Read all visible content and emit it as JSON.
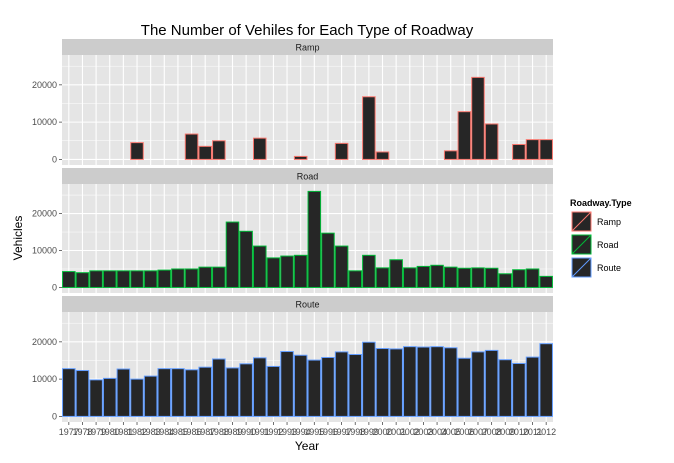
{
  "chart_data": {
    "type": "bar",
    "title": "The Number of Vehiles for Each Type of Roadway",
    "xlabel": "Year",
    "ylabel": "Vehicles",
    "grid": true,
    "legend": {
      "title": "Roadway.Type",
      "position": "right",
      "entries": [
        "Ramp",
        "Road",
        "Route"
      ]
    },
    "ylim": [
      -1500,
      28000
    ],
    "yticks": [
      0,
      10000,
      20000
    ],
    "categories": [
      "1977",
      "1978",
      "1979",
      "1980",
      "1981",
      "1982",
      "1983",
      "1984",
      "1985",
      "1986",
      "1987",
      "1988",
      "1989",
      "1990",
      "1991",
      "1992",
      "1993",
      "1994",
      "1995",
      "1996",
      "1997",
      "1998",
      "1999",
      "2000",
      "2001",
      "2002",
      "2003",
      "2004",
      "2005",
      "2006",
      "2007",
      "2008",
      "2009",
      "2010",
      "2011",
      "2012"
    ],
    "category_labels": [
      "1977",
      "1978",
      "1979",
      "1980",
      "1981",
      "1982",
      "1983",
      "1984",
      "1985",
      "1986",
      "1987",
      "1988",
      "1989",
      "1990",
      "1991",
      "1992",
      "1993",
      "1994",
      "1995",
      "1996",
      "1997",
      "1998",
      "1999",
      "2000",
      "2001",
      "2002",
      "2003",
      "2004",
      "2005",
      "2006",
      "2007",
      "2008",
      "2009",
      "2010",
      "2011",
      "2012"
    ],
    "series": [
      {
        "name": "Ramp",
        "color": "#F8766D",
        "values": [
          null,
          null,
          null,
          null,
          null,
          4500,
          null,
          null,
          null,
          6800,
          3500,
          5000,
          null,
          null,
          5700,
          null,
          null,
          800,
          null,
          null,
          4300,
          null,
          16800,
          2000,
          null,
          null,
          null,
          null,
          2300,
          12800,
          22000,
          9500,
          null,
          4000,
          5300,
          5300
        ]
      },
      {
        "name": "Road",
        "color": "#00BA38",
        "values": [
          4300,
          4000,
          4500,
          4500,
          4500,
          4500,
          4500,
          4700,
          5000,
          5000,
          5500,
          5500,
          17700,
          15200,
          11200,
          8000,
          8500,
          8700,
          26000,
          14700,
          11200,
          4500,
          8700,
          5300,
          7500,
          5300,
          5700,
          6000,
          5500,
          5200,
          5300,
          5200,
          3700,
          4800,
          5000,
          3000
        ]
      },
      {
        "name": "Route",
        "color": "#619CFF",
        "values": [
          12800,
          12300,
          9800,
          10200,
          12700,
          10000,
          10800,
          12800,
          12800,
          12500,
          13200,
          15400,
          13000,
          14100,
          15700,
          13400,
          17400,
          16400,
          15100,
          15800,
          17300,
          16600,
          19900,
          18200,
          18100,
          18700,
          18600,
          18700,
          18400,
          15600,
          17300,
          17700,
          15200,
          14200,
          15900,
          19500
        ]
      }
    ],
    "bar_fill": "#262626",
    "panel_background": "#E5E5E5",
    "strip_background": "#CCCCCC",
    "grid_color": "#FFFFFF"
  }
}
